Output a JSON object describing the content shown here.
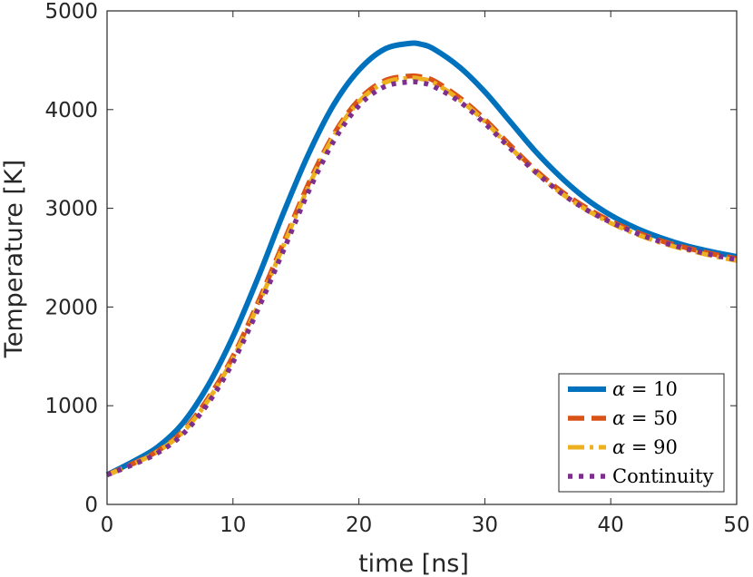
{
  "chart_data": {
    "type": "line",
    "title": "",
    "xlabel": "time [ns]",
    "ylabel": "Temperature [K]",
    "xlim": [
      0,
      50
    ],
    "ylim": [
      0,
      5000
    ],
    "xticks": [
      0,
      10,
      20,
      30,
      40,
      50
    ],
    "yticks": [
      0,
      1000,
      2000,
      3000,
      4000,
      5000
    ],
    "xtick_labels": [
      "0",
      "10",
      "20",
      "30",
      "40",
      "50"
    ],
    "ytick_labels": [
      "0",
      "1000",
      "2000",
      "3000",
      "4000",
      "5000"
    ],
    "grid": false,
    "legend_position": "bottom-right",
    "x": [
      0,
      2,
      4,
      6,
      8,
      10,
      12,
      14,
      16,
      18,
      20,
      22,
      24,
      25,
      26,
      28,
      30,
      32,
      34,
      36,
      38,
      40,
      42,
      44,
      46,
      48,
      50
    ],
    "series": [
      {
        "name": "α = 10",
        "legend_greek": "α",
        "legend_rest": " = 10",
        "color": "#0072BD",
        "style": "solid",
        "values": [
          300,
          430,
          580,
          820,
          1200,
          1700,
          2300,
          2950,
          3550,
          4050,
          4400,
          4610,
          4670,
          4660,
          4610,
          4430,
          4180,
          3880,
          3580,
          3320,
          3100,
          2930,
          2800,
          2700,
          2620,
          2560,
          2510
        ]
      },
      {
        "name": "α = 50",
        "legend_greek": "α",
        "legend_rest": " = 50",
        "color": "#D95319",
        "style": "dashed",
        "values": [
          300,
          410,
          540,
          740,
          1070,
          1500,
          2050,
          2650,
          3250,
          3750,
          4100,
          4290,
          4340,
          4330,
          4290,
          4120,
          3900,
          3640,
          3390,
          3180,
          3010,
          2870,
          2760,
          2670,
          2600,
          2540,
          2490
        ]
      },
      {
        "name": "α = 90",
        "legend_greek": "α",
        "legend_rest": " = 90",
        "color": "#EDB120",
        "style": "dashdot",
        "values": [
          300,
          405,
          535,
          730,
          1050,
          1480,
          2020,
          2620,
          3220,
          3730,
          4080,
          4270,
          4320,
          4310,
          4270,
          4100,
          3880,
          3620,
          3370,
          3160,
          2990,
          2850,
          2740,
          2650,
          2580,
          2520,
          2470
        ]
      },
      {
        "name": "Continuity",
        "legend_greek": "",
        "legend_rest": "Continuity",
        "color": "#7E2F8E",
        "style": "dotted",
        "values": [
          300,
          400,
          520,
          710,
          1020,
          1440,
          1980,
          2570,
          3170,
          3680,
          4040,
          4230,
          4280,
          4270,
          4230,
          4080,
          3860,
          3610,
          3370,
          3160,
          2990,
          2860,
          2750,
          2660,
          2590,
          2530,
          2480
        ]
      }
    ]
  }
}
